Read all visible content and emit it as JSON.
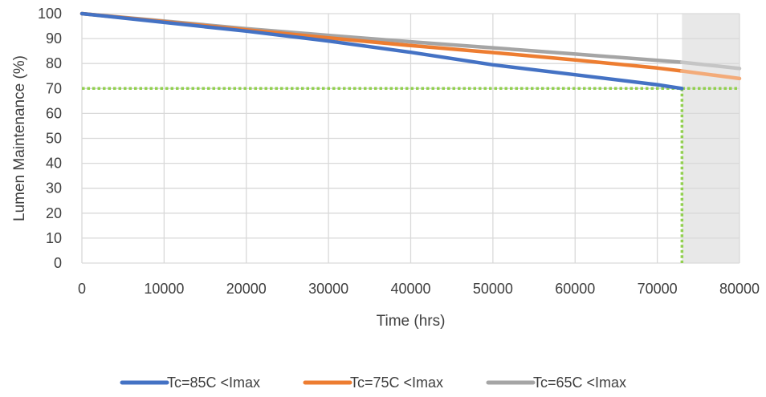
{
  "chart_data": {
    "type": "line",
    "xlabel": "Time (hrs)",
    "ylabel": "Lumen Maintenance (%)",
    "xlim": [
      0,
      80000
    ],
    "ylim": [
      0,
      100
    ],
    "x_ticks": [
      0,
      10000,
      20000,
      30000,
      40000,
      50000,
      60000,
      70000,
      80000
    ],
    "y_ticks": [
      0,
      10,
      20,
      30,
      40,
      50,
      60,
      70,
      80,
      90,
      100
    ],
    "grid": true,
    "legend_position": "bottom",
    "shaded_region": {
      "x_start": 73000,
      "x_end": 80000,
      "color": "#e8e8e8"
    },
    "reference_lines": {
      "horizontal": {
        "y": 70,
        "color": "#92d050",
        "style": "dotted"
      },
      "vertical": {
        "x": 73000,
        "color": "#92d050",
        "style": "dotted"
      }
    },
    "series": [
      {
        "name": "Tc=85C <Imax",
        "color": "#4472c4",
        "x": [
          0,
          10000,
          20000,
          30000,
          40000,
          50000,
          60000,
          70000,
          73000
        ],
        "y": [
          100,
          96.5,
          93,
          89,
          84.5,
          79.5,
          75.5,
          71.5,
          70
        ]
      },
      {
        "name": "Tc=75C <Imax",
        "color": "#ed7d31",
        "x": [
          0,
          10000,
          20000,
          30000,
          40000,
          50000,
          60000,
          70000,
          73000,
          80000
        ],
        "y": [
          100,
          96.8,
          93.5,
          90.3,
          87.2,
          84.4,
          81.4,
          78.2,
          77,
          74
        ]
      },
      {
        "name": "Tc=65C <Imax",
        "color": "#a5a5a5",
        "x": [
          0,
          10000,
          20000,
          30000,
          40000,
          50000,
          60000,
          70000,
          73000,
          80000
        ],
        "y": [
          100,
          97,
          94,
          91.3,
          88.7,
          86.3,
          83.8,
          81.3,
          80.5,
          78
        ]
      }
    ]
  }
}
